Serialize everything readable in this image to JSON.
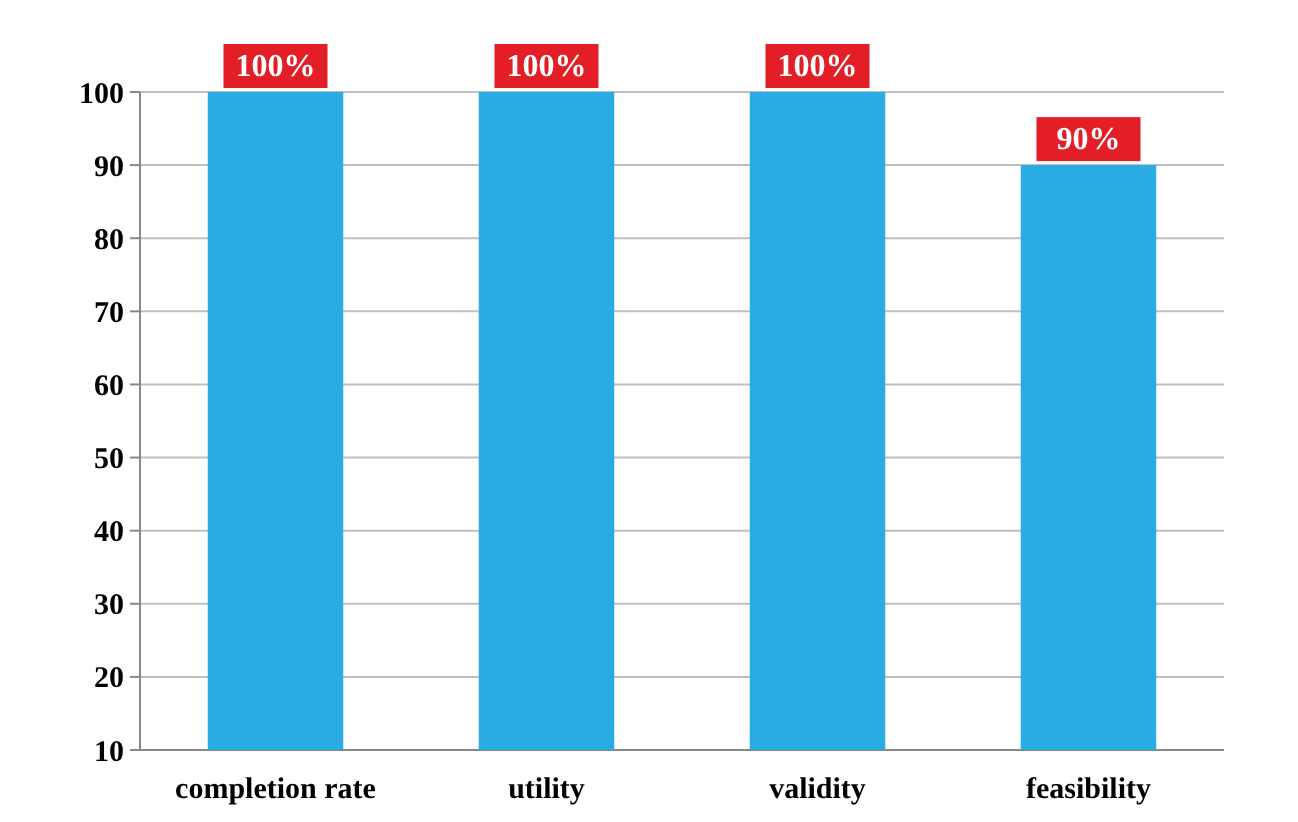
{
  "chart_data": {
    "type": "bar",
    "categories": [
      "completion rate",
      "utility",
      "validity",
      "feasibility"
    ],
    "values": [
      100,
      100,
      100,
      90
    ],
    "color": "#29abe3",
    "value_labels": [
      "100%",
      "100%",
      "100%",
      "90%"
    ],
    "ylim": [
      10,
      100
    ],
    "yticks": [
      10,
      20,
      30,
      40,
      50,
      60,
      70,
      80,
      90,
      100
    ],
    "grid": "y"
  }
}
